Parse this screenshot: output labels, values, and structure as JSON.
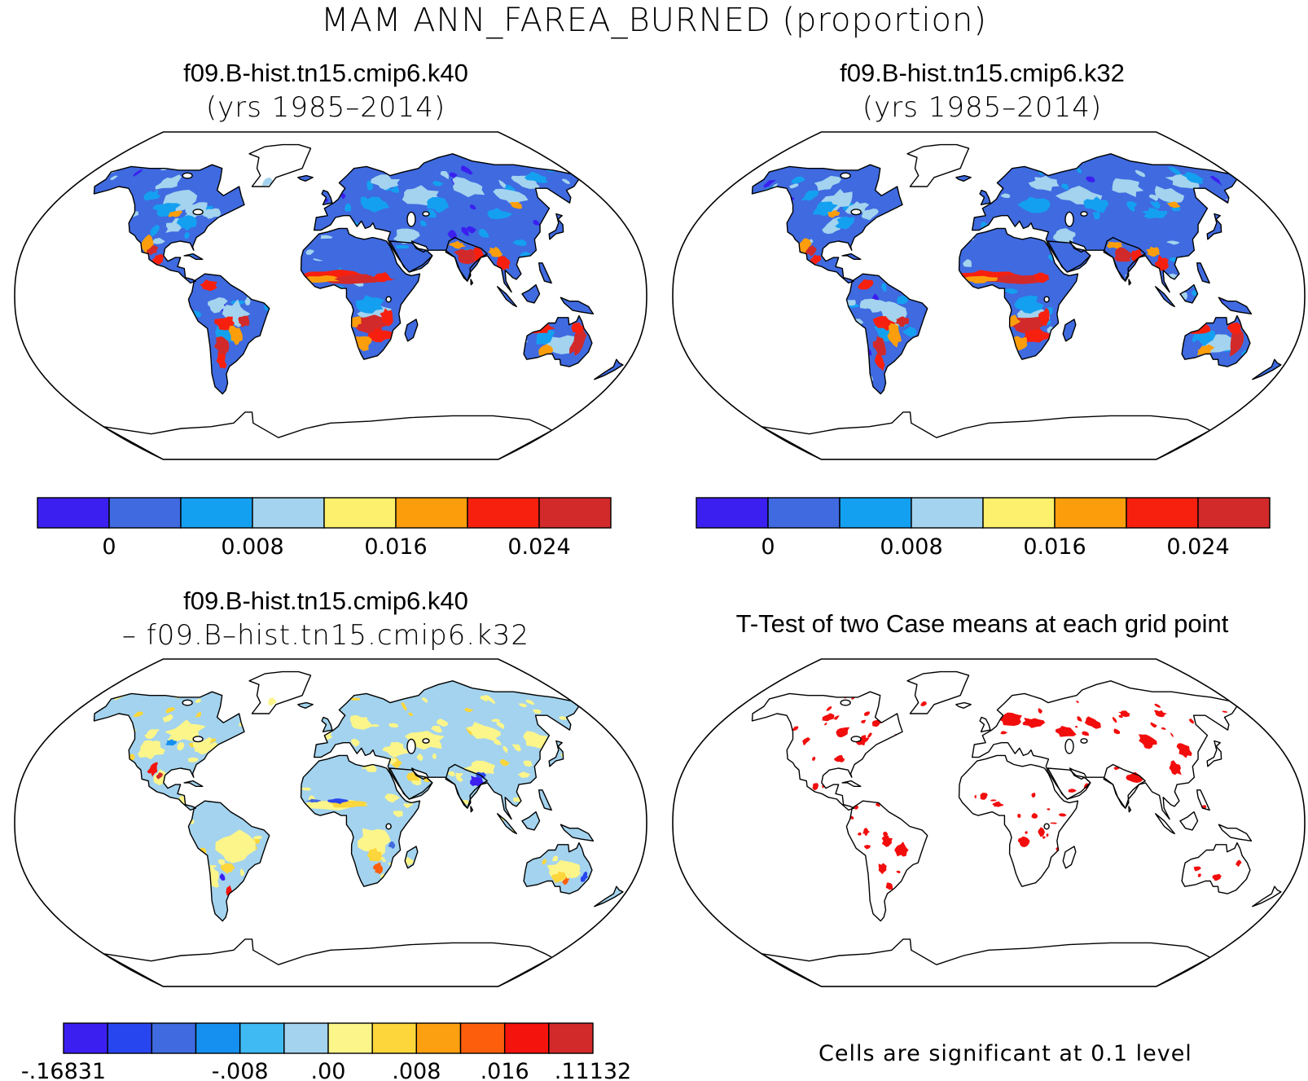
{
  "figure": {
    "title": "MAM ANN_FAREA_BURNED (proportion)"
  },
  "panels": {
    "p1": {
      "line1": "f09.B-hist.tn15.cmip6.k40",
      "line2": "(yrs 1985–2014)"
    },
    "p2": {
      "line1": "f09.B-hist.tn15.cmip6.k32",
      "line2": "(yrs 1985–2014)"
    },
    "p3": {
      "line1": "f09.B-hist.tn15.cmip6.k40",
      "line2": "– f09.B–hist.tn15.cmip6.k32"
    },
    "p4": {
      "line1": "T-Test of two Case means at each grid point"
    }
  },
  "colorbars": {
    "mean": {
      "colors": [
        "#3b1ff0",
        "#3f6ae0",
        "#14a0f0",
        "#a3d3ee",
        "#fcf06c",
        "#fc9e0c",
        "#f7200f",
        "#d22a2a"
      ],
      "labels": [
        "0",
        "0.008",
        "0.016",
        "0.024"
      ]
    },
    "diff": {
      "colors": [
        "#3b1ff0",
        "#2846f0",
        "#3f6ae0",
        "#1590f0",
        "#3fbaf2",
        "#a3d3ee",
        "#fcf58a",
        "#fcd63a",
        "#fca012",
        "#fc5e0c",
        "#f4130d",
        "#d22a2a"
      ],
      "labels": [
        "-.16831",
        "-.008",
        ".00",
        ".008",
        ".016",
        ".11132"
      ]
    }
  },
  "significance": {
    "note": "Cells are significant at 0.1 level",
    "color": "#f20d0d"
  },
  "map_style": {
    "projection": "Robinson",
    "ocean_color": "#ffffff",
    "coast_color": "#000000"
  }
}
